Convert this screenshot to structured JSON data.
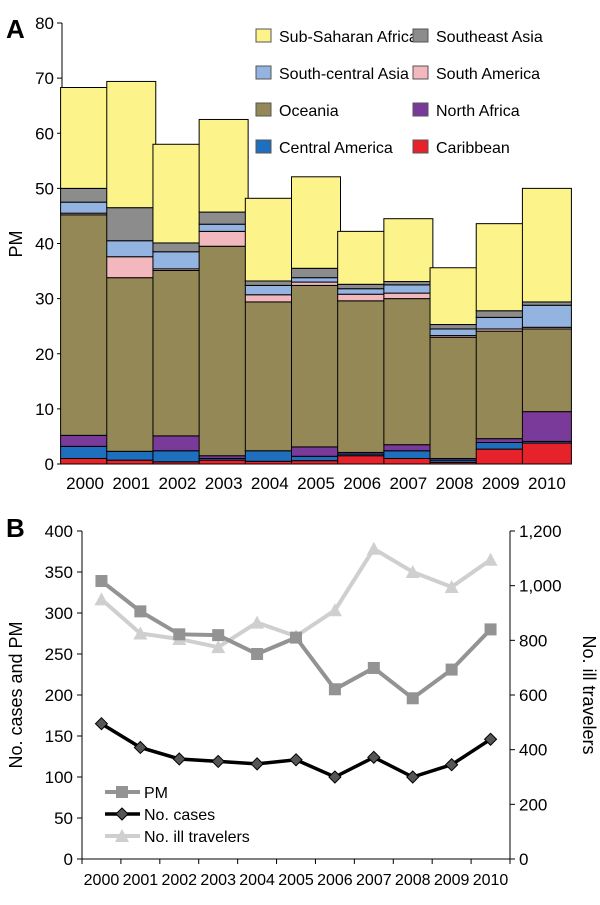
{
  "chart_data": [
    {
      "panel_label": "A",
      "type": "bar",
      "stacked": true,
      "ylabel": "PM",
      "ylim": [
        0,
        80
      ],
      "yticks": [
        0,
        10,
        20,
        30,
        40,
        50,
        60,
        70,
        80
      ],
      "categories": [
        "2000",
        "2001",
        "2002",
        "2003",
        "2004",
        "2005",
        "2006",
        "2007",
        "2008",
        "2009",
        "2010"
      ],
      "legend_placement": "top-right",
      "series": [
        {
          "name": "Caribbean",
          "color": "#e8222a",
          "values": [
            1.0,
            0.7,
            0.4,
            0.7,
            0.5,
            0.6,
            1.5,
            1.0,
            0.3,
            2.7,
            3.8
          ]
        },
        {
          "name": "Central America",
          "color": "#1f6fbf",
          "values": [
            2.2,
            1.6,
            2.0,
            0.3,
            1.9,
            0.8,
            0.3,
            1.4,
            0.4,
            1.2,
            0.3
          ]
        },
        {
          "name": "North Africa",
          "color": "#7a3a9a",
          "values": [
            2.0,
            0.0,
            2.7,
            0.5,
            0.0,
            1.7,
            0.3,
            1.1,
            0.3,
            0.7,
            5.4
          ]
        },
        {
          "name": "Oceania",
          "color": "#948956",
          "values": [
            40.0,
            31.5,
            30.0,
            38.0,
            27.0,
            29.3,
            27.5,
            26.5,
            22.0,
            19.5,
            15.0
          ]
        },
        {
          "name": "South America",
          "color": "#f2b8bd",
          "values": [
            0.3,
            3.8,
            0.3,
            2.7,
            1.3,
            0.6,
            1.2,
            1.0,
            0.3,
            0.4,
            0.3
          ]
        },
        {
          "name": "South-central Asia",
          "color": "#93b3e0",
          "values": [
            2.0,
            2.9,
            3.1,
            1.3,
            1.7,
            0.8,
            1.0,
            1.5,
            1.2,
            2.1,
            4.0
          ]
        },
        {
          "name": "Southeast Asia",
          "color": "#8c8c8c",
          "values": [
            2.5,
            6.0,
            1.6,
            2.2,
            0.8,
            1.7,
            0.8,
            0.6,
            0.8,
            1.2,
            0.6
          ]
        },
        {
          "name": "Sub-Saharan Africa",
          "color": "#fcf48a",
          "values": [
            18.3,
            22.9,
            17.9,
            16.8,
            15.0,
            16.6,
            9.6,
            11.4,
            10.3,
            15.8,
            20.6
          ]
        }
      ],
      "legend_order": [
        "Sub-Saharan Africa",
        "Southeast Asia",
        "South-central Asia",
        "South America",
        "Oceania",
        "North Africa",
        "Central America",
        "Caribbean"
      ]
    },
    {
      "panel_label": "B",
      "type": "line",
      "x": [
        "2000",
        "2001",
        "2002",
        "2003",
        "2004",
        "2005",
        "2006",
        "2007",
        "2008",
        "2009",
        "2010"
      ],
      "ylabel": "No. cases and PM",
      "ylim": [
        0,
        400
      ],
      "yticks": [
        "0",
        "50",
        "100",
        "150",
        "200",
        "250",
        "300",
        "350",
        "400"
      ],
      "y2label": "No. ill travelers",
      "y2lim": [
        0,
        1200
      ],
      "y2ticks": [
        "0",
        "200",
        "400",
        "600",
        "800",
        "1,000",
        "1,200"
      ],
      "legend_placement": "bottom-left",
      "series": [
        {
          "name": "PM",
          "axis": "left",
          "color": "#939393",
          "marker": "square",
          "values": [
            339,
            302,
            274,
            273,
            250,
            270,
            207,
            233,
            196,
            231,
            280
          ]
        },
        {
          "name": "No. cases",
          "axis": "left",
          "color": "#000000",
          "marker": "diamond",
          "values": [
            165,
            136,
            122,
            119,
            116,
            121,
            100,
            124,
            100,
            115,
            146
          ]
        },
        {
          "name": "No. ill travelers",
          "axis": "right",
          "color": "#cfcfcf",
          "marker": "triangle",
          "values": [
            950,
            825,
            805,
            775,
            865,
            815,
            910,
            1135,
            1050,
            995,
            1095
          ]
        }
      ],
      "legend_order": [
        "PM",
        "No. cases",
        "No. ill travelers"
      ]
    }
  ]
}
